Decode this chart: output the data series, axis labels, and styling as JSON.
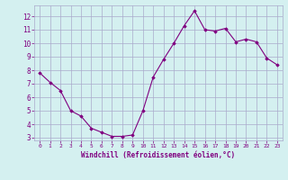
{
  "x": [
    0,
    1,
    2,
    3,
    4,
    5,
    6,
    7,
    8,
    9,
    10,
    11,
    12,
    13,
    14,
    15,
    16,
    17,
    18,
    19,
    20,
    21,
    22,
    23
  ],
  "y": [
    7.8,
    7.1,
    6.5,
    5.0,
    4.6,
    3.7,
    3.4,
    3.1,
    3.1,
    3.2,
    5.0,
    7.5,
    8.8,
    10.0,
    11.3,
    12.4,
    11.0,
    10.9,
    11.1,
    10.1,
    10.3,
    10.1,
    8.9,
    8.4
  ],
  "line_color": "#800080",
  "marker": "D",
  "marker_size": 1.8,
  "bg_color": "#d4f0f0",
  "grid_color": "#aaaacc",
  "xlabel": "Windchill (Refroidissement éolien,°C)",
  "xlabel_color": "#800080",
  "tick_color": "#800080",
  "ylim": [
    2.8,
    12.8
  ],
  "xlim": [
    -0.5,
    23.5
  ],
  "yticks": [
    3,
    4,
    5,
    6,
    7,
    8,
    9,
    10,
    11,
    12
  ],
  "xticks": [
    0,
    1,
    2,
    3,
    4,
    5,
    6,
    7,
    8,
    9,
    10,
    11,
    12,
    13,
    14,
    15,
    16,
    17,
    18,
    19,
    20,
    21,
    22,
    23
  ],
  "linewidth": 0.8
}
